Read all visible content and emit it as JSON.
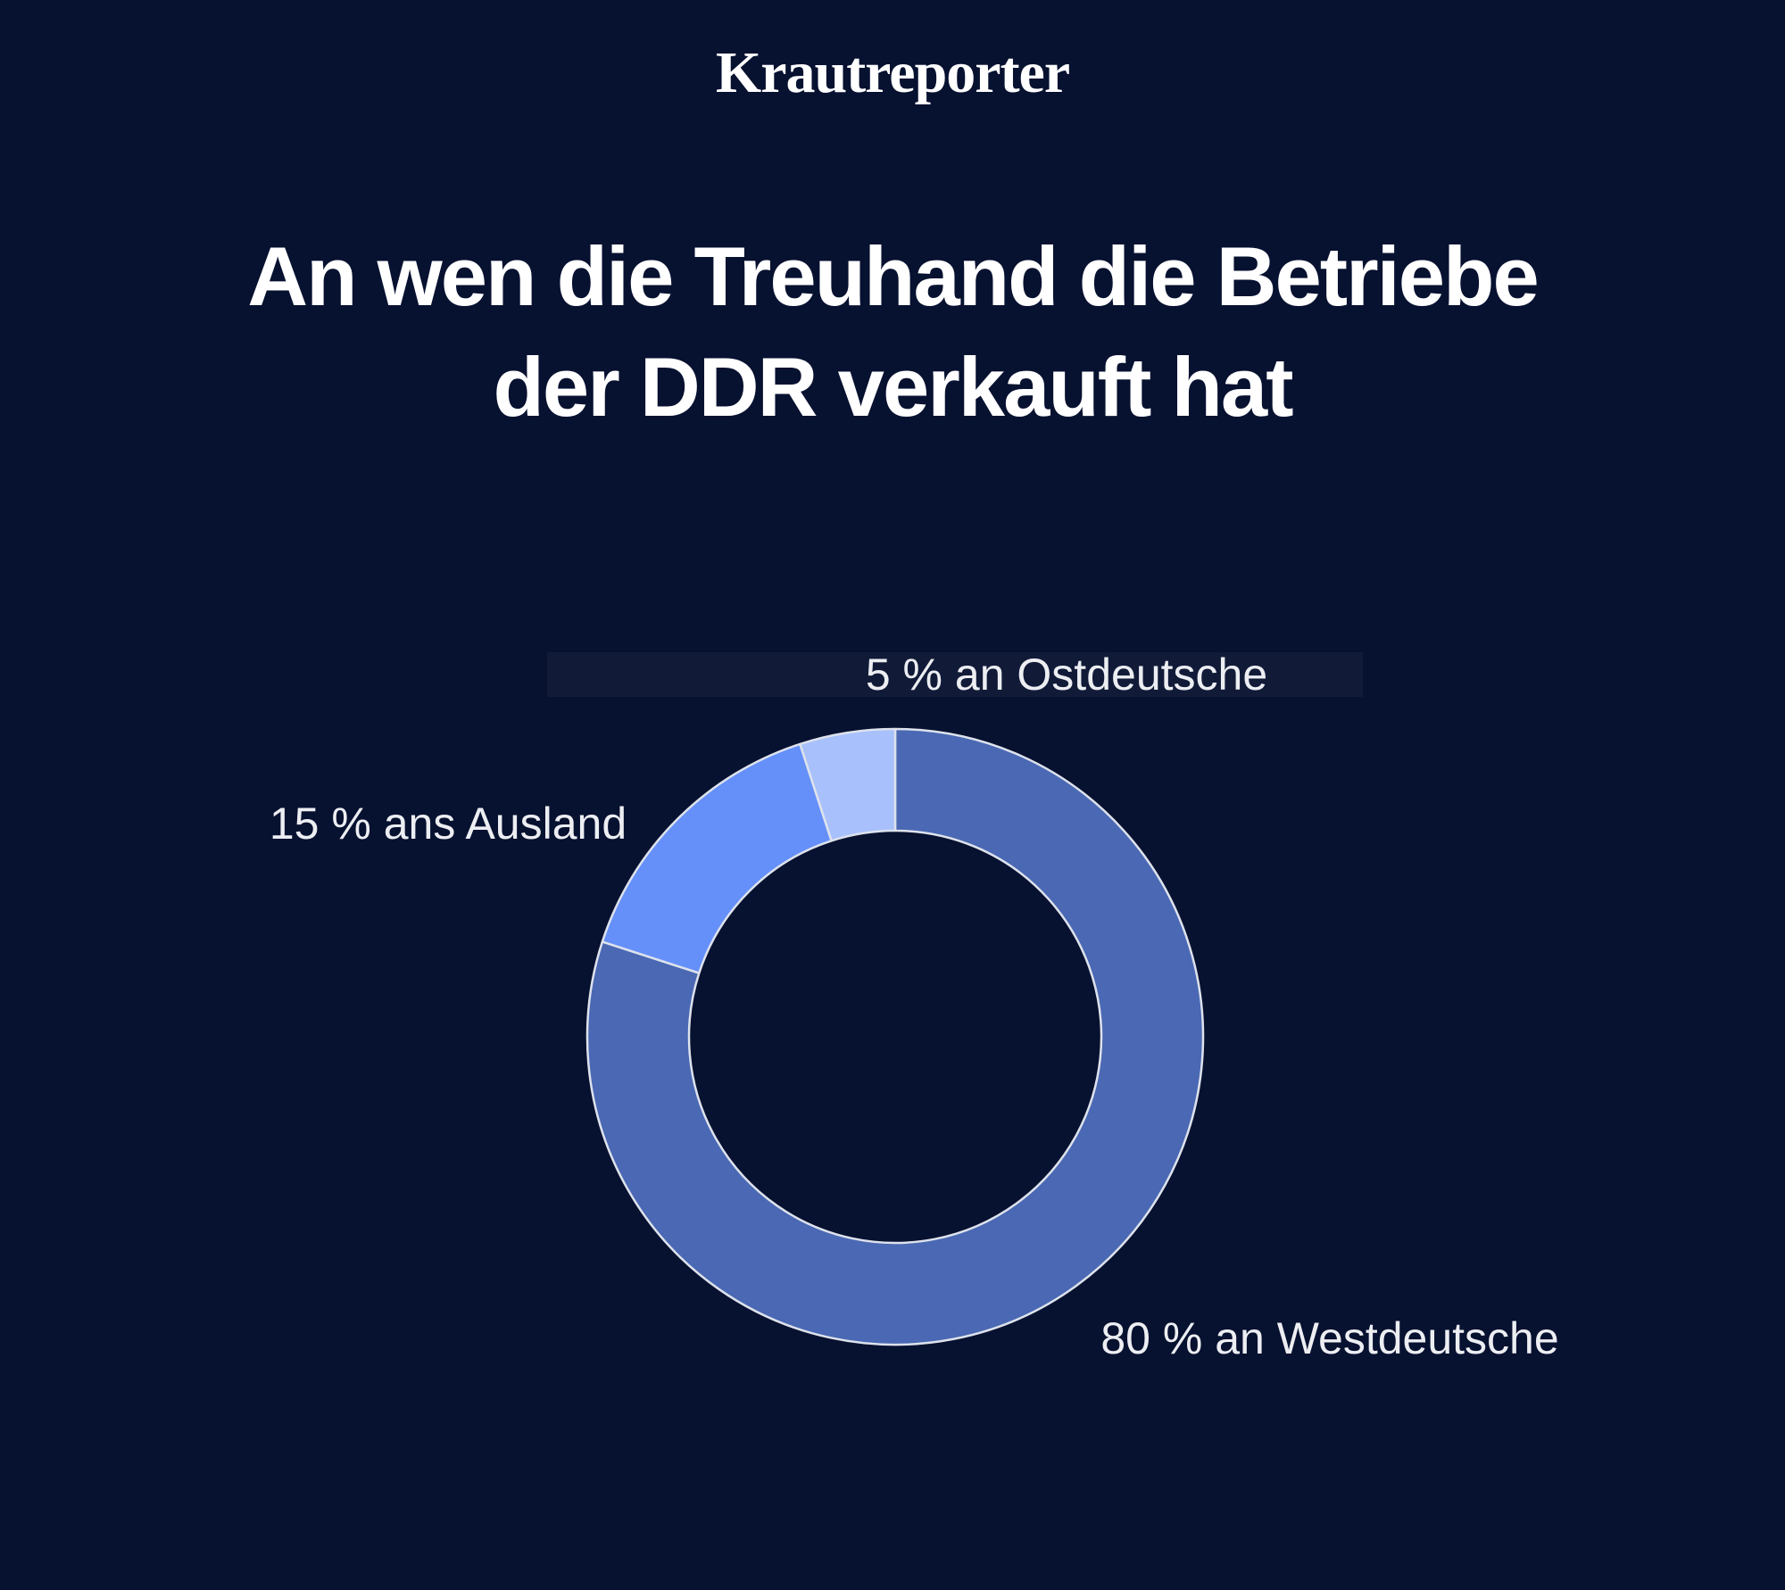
{
  "page": {
    "background": "#071130"
  },
  "logo": {
    "text": "Krautreporter"
  },
  "title": {
    "line1": "An wen die Treuhand die Betriebe",
    "line2": "der DDR verkauft hat"
  },
  "chart_data": {
    "type": "pie",
    "subtype": "donut",
    "title": "An wen die Treuhand die Betriebe der DDR verkauft hat",
    "categories": [
      "an Westdeutsche",
      "ans Ausland",
      "an Ostdeutsche"
    ],
    "values": [
      80,
      15,
      5
    ],
    "unit": "%",
    "labels": [
      "80 % an Westdeutsche",
      "15 % ans Ausland",
      "5 % an Ostdeutsche"
    ],
    "colors": [
      "#4a68b3",
      "#6590fa",
      "#a8c0fb"
    ],
    "separator_color": "#dde2ec",
    "background_color": "#071130",
    "start_angle_deg": 0,
    "direction": "clockwise",
    "inner_radius_ratio": 0.67,
    "legend_position": "none",
    "labels_placement": "outside"
  }
}
